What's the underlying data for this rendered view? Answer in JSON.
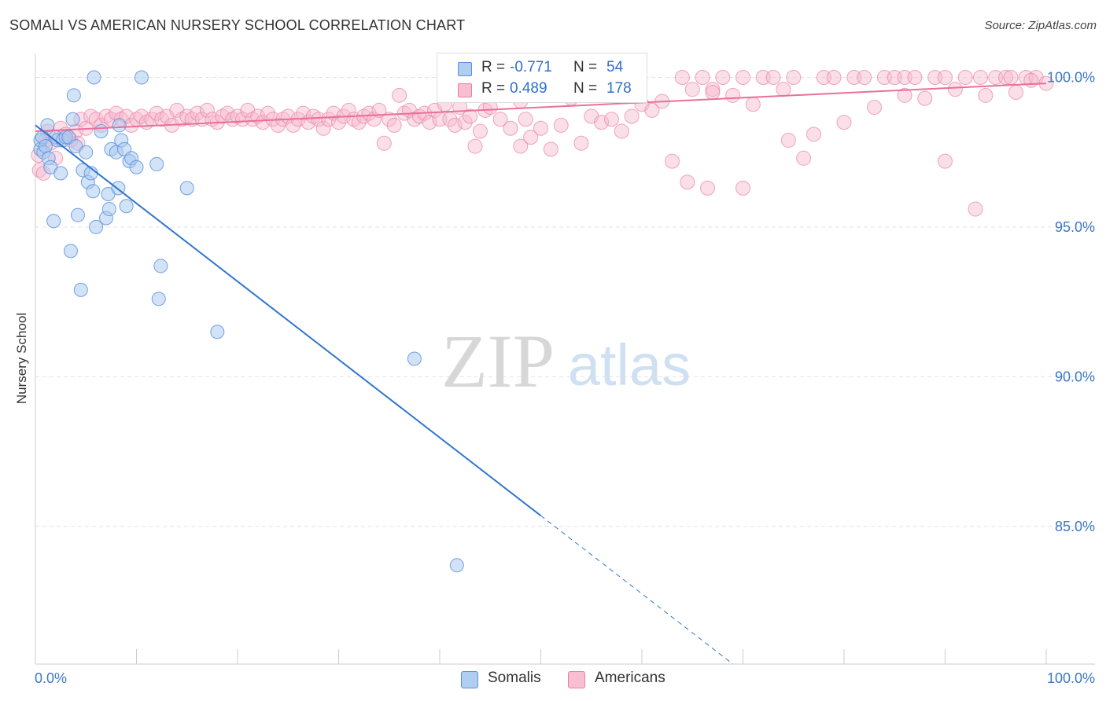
{
  "title": "SOMALI VS AMERICAN NURSERY SCHOOL CORRELATION CHART",
  "source": "Source: ZipAtlas.com",
  "watermark": {
    "zip": "ZIP",
    "atlas": "atlas"
  },
  "legend_top": {
    "somali": {
      "r_label": "R =",
      "r_value": "-0.771",
      "n_label": "N =",
      "n_value": "54"
    },
    "american": {
      "r_label": "R =",
      "r_value": "0.489",
      "n_label": "N =",
      "n_value": "178"
    }
  },
  "legend_bottom": {
    "somali": "Somalis",
    "american": "Americans"
  },
  "colors": {
    "somali_fill": "#a8c8f0",
    "somali_stroke": "#5a92dc",
    "somali_line": "#2f74d0",
    "american_fill": "#f6b8cc",
    "american_stroke": "#e880a4",
    "american_line": "#e8709a",
    "tick_label": "#3d78c8",
    "grid": "#e4e4e4",
    "value_text": "#2f6fd0"
  },
  "chart_data": {
    "type": "scatter",
    "title": "SOMALI VS AMERICAN NURSERY SCHOOL CORRELATION CHART",
    "xlabel": "",
    "ylabel": "Nursery School",
    "xlim": [
      0,
      100
    ],
    "ylim": [
      80.4,
      100.8
    ],
    "x_tick_labels": [
      "0.0%",
      "100.0%"
    ],
    "y_ticks": [
      85,
      90,
      95,
      100
    ],
    "y_tick_labels": [
      "85.0%",
      "90.0%",
      "95.0%",
      "100.0%"
    ],
    "grid": true,
    "series": [
      {
        "name": "Somalis",
        "r": -0.771,
        "n": 54,
        "trend": {
          "x0": 0,
          "y0": 98.4,
          "x_solid_end": 50,
          "x1": 69,
          "y1": 80.4
        },
        "points": [
          [
            0.5,
            97.6
          ],
          [
            0.5,
            97.9
          ],
          [
            0.7,
            98.0
          ],
          [
            0.8,
            97.5
          ],
          [
            1.0,
            97.7
          ],
          [
            1.2,
            98.4
          ],
          [
            1.3,
            97.3
          ],
          [
            1.5,
            97.0
          ],
          [
            1.8,
            95.2
          ],
          [
            2.0,
            98.0
          ],
          [
            2.2,
            97.9
          ],
          [
            2.5,
            96.8
          ],
          [
            2.7,
            97.9
          ],
          [
            3.0,
            98.0
          ],
          [
            3.3,
            98.0
          ],
          [
            3.5,
            94.2
          ],
          [
            3.7,
            98.6
          ],
          [
            3.8,
            99.4
          ],
          [
            4.0,
            97.7
          ],
          [
            4.2,
            95.4
          ],
          [
            4.5,
            92.9
          ],
          [
            4.7,
            96.9
          ],
          [
            5.0,
            97.5
          ],
          [
            5.2,
            96.5
          ],
          [
            5.5,
            96.8
          ],
          [
            5.7,
            96.2
          ],
          [
            5.8,
            100.0
          ],
          [
            6.0,
            95.0
          ],
          [
            6.5,
            98.2
          ],
          [
            7.0,
            95.3
          ],
          [
            7.2,
            96.1
          ],
          [
            7.3,
            95.6
          ],
          [
            7.5,
            97.6
          ],
          [
            8.0,
            97.5
          ],
          [
            8.2,
            96.3
          ],
          [
            8.3,
            98.4
          ],
          [
            8.5,
            97.9
          ],
          [
            8.8,
            97.6
          ],
          [
            9.0,
            95.7
          ],
          [
            9.3,
            97.2
          ],
          [
            9.5,
            97.3
          ],
          [
            10.0,
            97.0
          ],
          [
            10.5,
            100.0
          ],
          [
            12.0,
            97.1
          ],
          [
            12.2,
            92.6
          ],
          [
            12.4,
            93.7
          ],
          [
            15.0,
            96.3
          ],
          [
            18.0,
            91.5
          ],
          [
            37.5,
            90.6
          ],
          [
            41.7,
            83.7
          ]
        ]
      },
      {
        "name": "Americans",
        "r": 0.489,
        "n": 178,
        "trend": {
          "x0": 0,
          "y0": 98.2,
          "x1": 100,
          "y1": 99.8
        },
        "points": [
          [
            0.3,
            97.4
          ],
          [
            0.4,
            96.9
          ],
          [
            0.8,
            96.8
          ],
          [
            1.0,
            97.9
          ],
          [
            1.2,
            98.2
          ],
          [
            1.5,
            97.8
          ],
          [
            2.0,
            97.3
          ],
          [
            2.5,
            98.3
          ],
          [
            3.0,
            98.1
          ],
          [
            3.5,
            97.9
          ],
          [
            4.0,
            98.2
          ],
          [
            4.2,
            97.8
          ],
          [
            4.5,
            98.6
          ],
          [
            5.0,
            98.3
          ],
          [
            5.5,
            98.7
          ],
          [
            6.0,
            98.6
          ],
          [
            6.5,
            98.4
          ],
          [
            7.0,
            98.7
          ],
          [
            7.5,
            98.6
          ],
          [
            8.0,
            98.8
          ],
          [
            8.5,
            98.6
          ],
          [
            9.0,
            98.7
          ],
          [
            9.5,
            98.4
          ],
          [
            10.0,
            98.6
          ],
          [
            10.5,
            98.7
          ],
          [
            11.0,
            98.5
          ],
          [
            11.5,
            98.6
          ],
          [
            12.0,
            98.8
          ],
          [
            12.5,
            98.6
          ],
          [
            13.0,
            98.7
          ],
          [
            13.5,
            98.4
          ],
          [
            14.0,
            98.9
          ],
          [
            14.5,
            98.6
          ],
          [
            15.0,
            98.7
          ],
          [
            15.5,
            98.6
          ],
          [
            16.0,
            98.8
          ],
          [
            16.5,
            98.6
          ],
          [
            17.0,
            98.9
          ],
          [
            17.5,
            98.6
          ],
          [
            18.0,
            98.5
          ],
          [
            18.5,
            98.7
          ],
          [
            19.0,
            98.8
          ],
          [
            19.5,
            98.6
          ],
          [
            20.0,
            98.7
          ],
          [
            20.5,
            98.6
          ],
          [
            21.0,
            98.9
          ],
          [
            21.5,
            98.6
          ],
          [
            22.0,
            98.7
          ],
          [
            22.5,
            98.5
          ],
          [
            23.0,
            98.8
          ],
          [
            23.5,
            98.6
          ],
          [
            24.0,
            98.4
          ],
          [
            24.5,
            98.6
          ],
          [
            25.0,
            98.7
          ],
          [
            25.5,
            98.4
          ],
          [
            26.0,
            98.6
          ],
          [
            26.5,
            98.8
          ],
          [
            27.0,
            98.5
          ],
          [
            27.5,
            98.7
          ],
          [
            28.0,
            98.6
          ],
          [
            28.5,
            98.3
          ],
          [
            29.0,
            98.6
          ],
          [
            29.5,
            98.8
          ],
          [
            30.0,
            98.5
          ],
          [
            30.5,
            98.7
          ],
          [
            31.0,
            98.9
          ],
          [
            31.5,
            98.6
          ],
          [
            32.0,
            98.5
          ],
          [
            32.5,
            98.7
          ],
          [
            33.0,
            98.8
          ],
          [
            33.5,
            98.6
          ],
          [
            34.0,
            98.9
          ],
          [
            34.5,
            97.8
          ],
          [
            35.0,
            98.6
          ],
          [
            35.5,
            98.4
          ],
          [
            36.0,
            99.4
          ],
          [
            36.5,
            98.8
          ],
          [
            37.0,
            98.9
          ],
          [
            37.5,
            98.6
          ],
          [
            38.0,
            98.7
          ],
          [
            38.5,
            98.8
          ],
          [
            39.0,
            98.5
          ],
          [
            39.5,
            98.9
          ],
          [
            40.0,
            98.6
          ],
          [
            40.5,
            99.1
          ],
          [
            41.0,
            98.6
          ],
          [
            41.5,
            98.4
          ],
          [
            42.0,
            99.0
          ],
          [
            42.5,
            98.5
          ],
          [
            43.0,
            98.7
          ],
          [
            43.5,
            97.7
          ],
          [
            44.0,
            98.2
          ],
          [
            44.5,
            98.9
          ],
          [
            45.0,
            99.0
          ],
          [
            46.0,
            98.6
          ],
          [
            47.0,
            98.3
          ],
          [
            48.0,
            97.7
          ],
          [
            48.5,
            98.6
          ],
          [
            49.0,
            98.0
          ],
          [
            50.0,
            98.3
          ],
          [
            51.0,
            97.6
          ],
          [
            52.0,
            98.4
          ],
          [
            53.0,
            99.3
          ],
          [
            54.0,
            97.8
          ],
          [
            55.0,
            98.7
          ],
          [
            56.0,
            98.5
          ],
          [
            57.0,
            98.6
          ],
          [
            58.0,
            98.2
          ],
          [
            59.0,
            98.7
          ],
          [
            60.0,
            99.1
          ],
          [
            61.0,
            98.9
          ],
          [
            62.0,
            99.2
          ],
          [
            63.0,
            97.2
          ],
          [
            64.0,
            100.0
          ],
          [
            65.0,
            99.6
          ],
          [
            66.0,
            100.0
          ],
          [
            67.0,
            99.6
          ],
          [
            68.0,
            100.0
          ],
          [
            69.0,
            99.4
          ],
          [
            70.0,
            100.0
          ],
          [
            71.0,
            99.1
          ],
          [
            72.0,
            100.0
          ],
          [
            73.0,
            100.0
          ],
          [
            74.0,
            99.6
          ],
          [
            75.0,
            100.0
          ],
          [
            76.0,
            97.3
          ],
          [
            77.0,
            98.1
          ],
          [
            78.0,
            100.0
          ],
          [
            79.0,
            100.0
          ],
          [
            80.0,
            98.5
          ],
          [
            81.0,
            100.0
          ],
          [
            82.0,
            100.0
          ],
          [
            83.0,
            99.0
          ],
          [
            84.0,
            100.0
          ],
          [
            85.0,
            100.0
          ],
          [
            86.0,
            100.0
          ],
          [
            87.0,
            100.0
          ],
          [
            88.0,
            99.3
          ],
          [
            89.0,
            100.0
          ],
          [
            90.0,
            100.0
          ],
          [
            91.0,
            99.6
          ],
          [
            92.0,
            100.0
          ],
          [
            93.0,
            95.6
          ],
          [
            94.0,
            99.4
          ],
          [
            95.0,
            100.0
          ],
          [
            96.0,
            100.0
          ],
          [
            97.0,
            99.5
          ],
          [
            98.0,
            100.0
          ],
          [
            99.0,
            100.0
          ],
          [
            100.0,
            99.8
          ],
          [
            64.5,
            96.5
          ],
          [
            66.5,
            96.3
          ],
          [
            70.0,
            96.3
          ],
          [
            74.5,
            97.9
          ],
          [
            90.0,
            97.2
          ],
          [
            93.5,
            100.0
          ],
          [
            96.5,
            100.0
          ],
          [
            67.0,
            99.5
          ],
          [
            86.0,
            99.4
          ],
          [
            98.5,
            99.9
          ],
          [
            42.5,
            99.7
          ],
          [
            48.0,
            99.2
          ]
        ]
      }
    ]
  }
}
